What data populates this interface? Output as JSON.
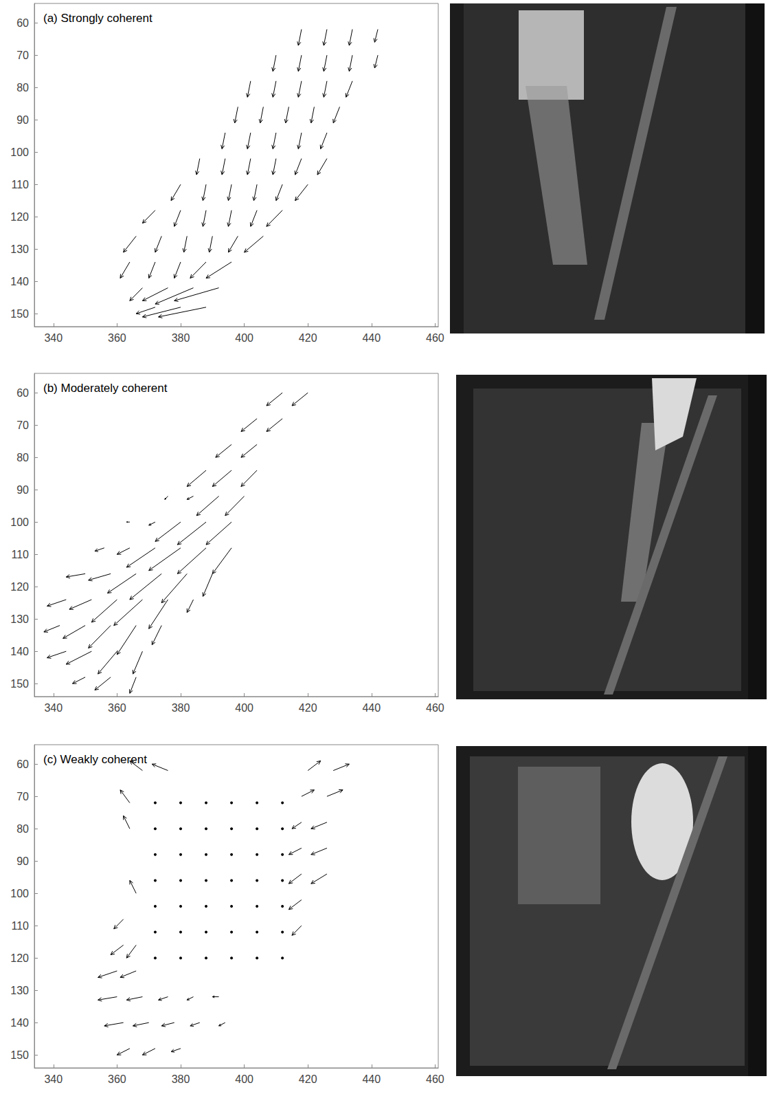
{
  "chart_data": [
    {
      "type": "quiver",
      "title": "(a) Strongly coherent",
      "xlim": [
        334,
        461
      ],
      "ylim": [
        154,
        54
      ],
      "xticks": [
        340,
        360,
        380,
        400,
        420,
        440,
        460
      ],
      "yticks": [
        60,
        70,
        80,
        90,
        100,
        110,
        120,
        130,
        140,
        150
      ],
      "grid": false,
      "color": "#000000",
      "vectors": [
        [
          418,
          62,
          -1,
          5
        ],
        [
          426,
          62,
          -1,
          5
        ],
        [
          434,
          62,
          -1,
          5
        ],
        [
          442,
          62,
          -1,
          4
        ],
        [
          410,
          70,
          -1,
          5
        ],
        [
          418,
          70,
          -1,
          5
        ],
        [
          426,
          70,
          -1,
          5
        ],
        [
          434,
          70,
          -1,
          5
        ],
        [
          442,
          70,
          -1,
          4
        ],
        [
          402,
          78,
          -1,
          5
        ],
        [
          410,
          78,
          -1,
          5
        ],
        [
          418,
          78,
          -1,
          5
        ],
        [
          426,
          78,
          -1,
          5
        ],
        [
          434,
          78,
          -2,
          5
        ],
        [
          398,
          86,
          -1,
          5
        ],
        [
          406,
          86,
          -1,
          5
        ],
        [
          414,
          86,
          -1,
          5
        ],
        [
          422,
          86,
          -1,
          5
        ],
        [
          430,
          86,
          -2,
          5
        ],
        [
          394,
          94,
          -1,
          5
        ],
        [
          402,
          94,
          -1,
          5
        ],
        [
          410,
          94,
          -1,
          5
        ],
        [
          418,
          94,
          -1,
          5
        ],
        [
          426,
          94,
          -2,
          5
        ],
        [
          386,
          102,
          -1,
          5
        ],
        [
          394,
          102,
          -1,
          5
        ],
        [
          402,
          102,
          -1,
          5
        ],
        [
          410,
          102,
          -1,
          5
        ],
        [
          418,
          102,
          -2,
          5
        ],
        [
          426,
          102,
          -3,
          5
        ],
        [
          380,
          110,
          -3,
          5
        ],
        [
          388,
          110,
          -1,
          5
        ],
        [
          396,
          110,
          -1,
          5
        ],
        [
          404,
          110,
          -1,
          5
        ],
        [
          412,
          110,
          -2,
          5
        ],
        [
          420,
          110,
          -4,
          5
        ],
        [
          372,
          118,
          -4,
          4
        ],
        [
          380,
          118,
          -2,
          5
        ],
        [
          388,
          118,
          -1,
          5
        ],
        [
          396,
          118,
          -1,
          5
        ],
        [
          404,
          118,
          -2,
          5
        ],
        [
          412,
          118,
          -5,
          5
        ],
        [
          366,
          126,
          -4,
          5
        ],
        [
          374,
          126,
          -2,
          5
        ],
        [
          382,
          126,
          -1,
          5
        ],
        [
          390,
          126,
          -1,
          5
        ],
        [
          398,
          126,
          -3,
          5
        ],
        [
          406,
          126,
          -6,
          5
        ],
        [
          364,
          134,
          -3,
          5
        ],
        [
          372,
          134,
          -2,
          5
        ],
        [
          380,
          134,
          -2,
          5
        ],
        [
          388,
          134,
          -5,
          5
        ],
        [
          396,
          134,
          -8,
          5
        ],
        [
          368,
          142,
          -4,
          4
        ],
        [
          376,
          142,
          -8,
          4
        ],
        [
          384,
          142,
          -12,
          5
        ],
        [
          392,
          142,
          -14,
          4
        ],
        [
          372,
          148,
          -6,
          2
        ],
        [
          380,
          148,
          -12,
          3
        ],
        [
          388,
          148,
          -15,
          3
        ]
      ]
    },
    {
      "type": "quiver",
      "title": "(b) Moderately coherent",
      "xlim": [
        334,
        461
      ],
      "ylim": [
        154,
        54
      ],
      "xticks": [
        340,
        360,
        380,
        400,
        420,
        440,
        460
      ],
      "yticks": [
        60,
        70,
        80,
        90,
        100,
        110,
        120,
        130,
        140,
        150
      ],
      "grid": false,
      "color": "#000000",
      "vectors": [
        [
          412,
          60,
          -5,
          4
        ],
        [
          420,
          60,
          -5,
          4
        ],
        [
          404,
          68,
          -5,
          4
        ],
        [
          412,
          68,
          -5,
          4
        ],
        [
          396,
          76,
          -5,
          4
        ],
        [
          404,
          76,
          -5,
          4
        ],
        [
          388,
          84,
          -6,
          5
        ],
        [
          396,
          84,
          -6,
          5
        ],
        [
          404,
          84,
          -5,
          5
        ],
        [
          376,
          92,
          -1,
          1
        ],
        [
          384,
          92,
          -2,
          1
        ],
        [
          392,
          92,
          -7,
          6
        ],
        [
          400,
          92,
          -6,
          6
        ],
        [
          364,
          100,
          -1,
          0
        ],
        [
          372,
          100,
          -2,
          1
        ],
        [
          380,
          100,
          -8,
          6
        ],
        [
          388,
          100,
          -9,
          7
        ],
        [
          396,
          100,
          -8,
          7
        ],
        [
          356,
          108,
          -3,
          1
        ],
        [
          364,
          108,
          -4,
          2
        ],
        [
          372,
          108,
          -9,
          6
        ],
        [
          380,
          108,
          -10,
          7
        ],
        [
          388,
          108,
          -9,
          8
        ],
        [
          396,
          108,
          -6,
          8
        ],
        [
          350,
          116,
          -6,
          1
        ],
        [
          358,
          116,
          -7,
          2
        ],
        [
          366,
          116,
          -9,
          6
        ],
        [
          374,
          116,
          -10,
          8
        ],
        [
          382,
          116,
          -8,
          9
        ],
        [
          390,
          116,
          -3,
          7
        ],
        [
          344,
          124,
          -6,
          2
        ],
        [
          352,
          124,
          -7,
          3
        ],
        [
          360,
          124,
          -8,
          7
        ],
        [
          368,
          124,
          -9,
          8
        ],
        [
          376,
          124,
          -6,
          9
        ],
        [
          384,
          124,
          -2,
          4
        ],
        [
          342,
          132,
          -5,
          2
        ],
        [
          350,
          132,
          -7,
          4
        ],
        [
          358,
          132,
          -7,
          7
        ],
        [
          366,
          132,
          -6,
          9
        ],
        [
          374,
          132,
          -3,
          6
        ],
        [
          344,
          140,
          -6,
          2
        ],
        [
          352,
          140,
          -8,
          4
        ],
        [
          360,
          140,
          -6,
          7
        ],
        [
          368,
          140,
          -3,
          7
        ],
        [
          350,
          148,
          -4,
          2
        ],
        [
          358,
          148,
          -5,
          4
        ],
        [
          366,
          148,
          -2,
          5
        ]
      ]
    },
    {
      "type": "quiver",
      "title": "(c) Weakly coherent",
      "xlim": [
        334,
        461
      ],
      "ylim": [
        154,
        54
      ],
      "xticks": [
        340,
        360,
        380,
        400,
        420,
        440,
        460
      ],
      "yticks": [
        60,
        70,
        80,
        90,
        100,
        110,
        120,
        130,
        140,
        150
      ],
      "grid": false,
      "color": "#000000",
      "vectors": [
        [
          368,
          62,
          -4,
          -3
        ],
        [
          376,
          62,
          -5,
          -2
        ],
        [
          420,
          62,
          4,
          -3
        ],
        [
          428,
          62,
          5,
          -2
        ],
        [
          364,
          72,
          -3,
          -4
        ],
        [
          364,
          80,
          -2,
          -4
        ],
        [
          418,
          70,
          4,
          -2
        ],
        [
          426,
          70,
          5,
          -2
        ],
        [
          418,
          78,
          -3,
          2
        ],
        [
          426,
          78,
          -5,
          2
        ],
        [
          418,
          86,
          -4,
          2
        ],
        [
          426,
          86,
          -5,
          2
        ],
        [
          418,
          94,
          -4,
          3
        ],
        [
          426,
          94,
          -5,
          3
        ],
        [
          418,
          102,
          -4,
          3
        ],
        [
          418,
          110,
          -3,
          3
        ],
        [
          366,
          100,
          -2,
          -4
        ],
        [
          362,
          108,
          -3,
          3
        ],
        [
          362,
          116,
          -4,
          3
        ],
        [
          366,
          116,
          -3,
          4
        ],
        [
          360,
          124,
          -6,
          2
        ],
        [
          366,
          124,
          -5,
          2
        ],
        [
          360,
          132,
          -6,
          1
        ],
        [
          368,
          132,
          -5,
          1
        ],
        [
          376,
          132,
          -3,
          1
        ],
        [
          384,
          132,
          -2,
          1
        ],
        [
          392,
          132,
          -2,
          0
        ],
        [
          362,
          140,
          -6,
          1
        ],
        [
          370,
          140,
          -5,
          1
        ],
        [
          378,
          140,
          -4,
          1
        ],
        [
          386,
          140,
          -3,
          1
        ],
        [
          394,
          140,
          -2,
          1
        ],
        [
          364,
          148,
          -4,
          2
        ],
        [
          372,
          148,
          -4,
          2
        ],
        [
          380,
          148,
          -3,
          1
        ],
        [
          372,
          72,
          0,
          0
        ],
        [
          380,
          72,
          0,
          0
        ],
        [
          388,
          72,
          0,
          0
        ],
        [
          396,
          72,
          0,
          0
        ],
        [
          404,
          72,
          0,
          0
        ],
        [
          412,
          72,
          0,
          0
        ],
        [
          372,
          80,
          0,
          0
        ],
        [
          380,
          80,
          0,
          0
        ],
        [
          388,
          80,
          0,
          0
        ],
        [
          396,
          80,
          0,
          0
        ],
        [
          404,
          80,
          0,
          0
        ],
        [
          412,
          80,
          0,
          0
        ],
        [
          372,
          88,
          0,
          0
        ],
        [
          380,
          88,
          0,
          0
        ],
        [
          388,
          88,
          0,
          0
        ],
        [
          396,
          88,
          0,
          0
        ],
        [
          404,
          88,
          0,
          0
        ],
        [
          412,
          88,
          0,
          0
        ],
        [
          372,
          96,
          0,
          0
        ],
        [
          380,
          96,
          0,
          0
        ],
        [
          388,
          96,
          0,
          0
        ],
        [
          396,
          96,
          0,
          0
        ],
        [
          404,
          96,
          0,
          0
        ],
        [
          412,
          96,
          0,
          0
        ],
        [
          372,
          104,
          0,
          0
        ],
        [
          380,
          104,
          0,
          0
        ],
        [
          388,
          104,
          0,
          0
        ],
        [
          396,
          104,
          0,
          0
        ],
        [
          404,
          104,
          0,
          0
        ],
        [
          412,
          104,
          0,
          0
        ],
        [
          372,
          112,
          0,
          0
        ],
        [
          380,
          112,
          0,
          0
        ],
        [
          388,
          112,
          0,
          0
        ],
        [
          396,
          112,
          0,
          0
        ],
        [
          404,
          112,
          0,
          0
        ],
        [
          412,
          112,
          0,
          0
        ],
        [
          372,
          120,
          0,
          0
        ],
        [
          380,
          120,
          0,
          0
        ],
        [
          388,
          120,
          0,
          0
        ],
        [
          396,
          120,
          0,
          0
        ],
        [
          404,
          120,
          0,
          0
        ],
        [
          412,
          120,
          0,
          0
        ]
      ]
    }
  ]
}
